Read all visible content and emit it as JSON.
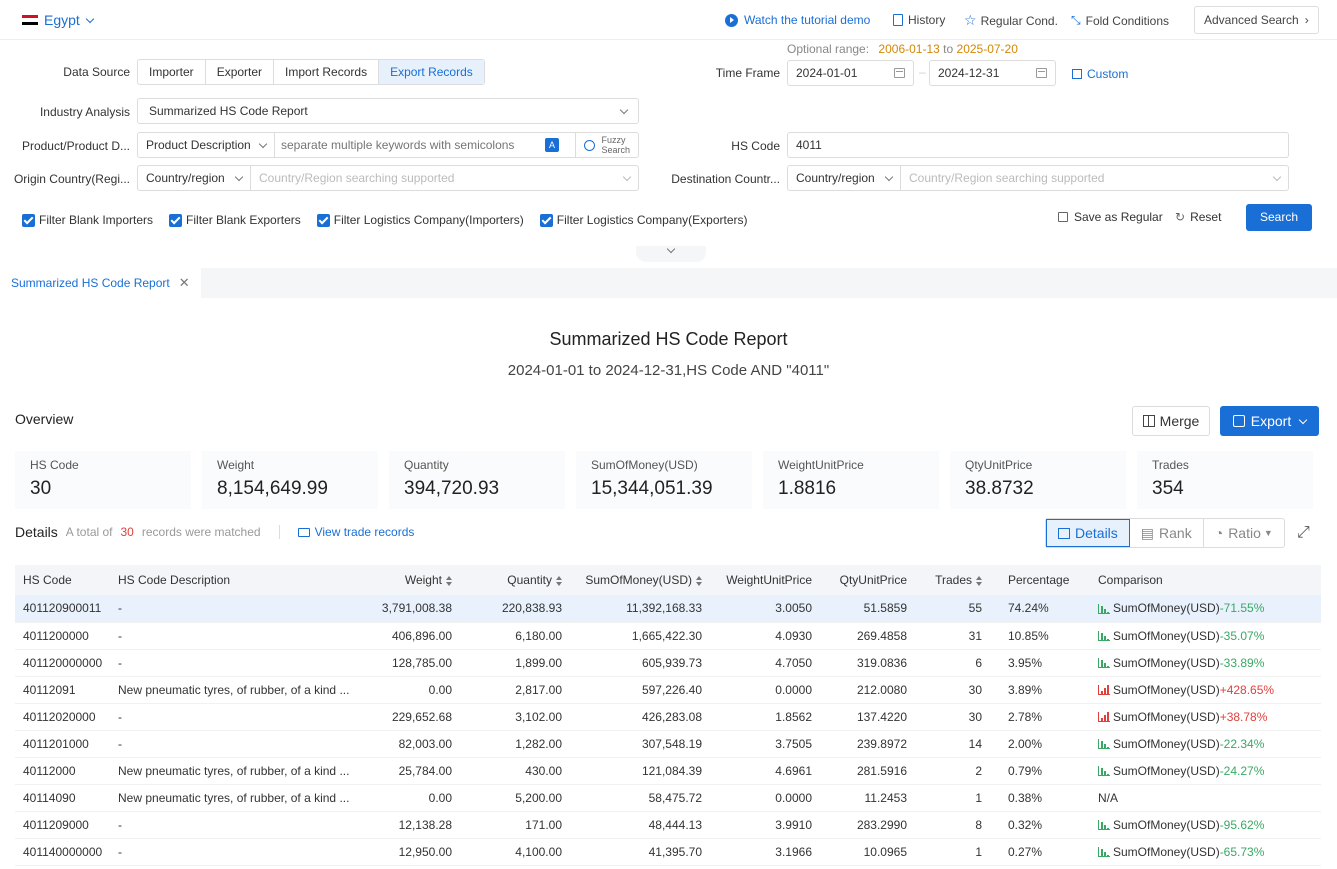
{
  "topbar": {
    "country": "Egypt",
    "tutorial": "Watch the tutorial demo",
    "history": "History",
    "regular": "Regular Cond.",
    "fold": "Fold Conditions",
    "advanced": "Advanced Search"
  },
  "form": {
    "optional_range_label": "Optional range",
    "range_start": "2006-01-13",
    "range_to": "to",
    "range_end": "2025-07-20",
    "data_source_label": "Data Source",
    "data_source_options": [
      "Importer",
      "Exporter",
      "Import Records",
      "Export Records"
    ],
    "data_source_selected": "Export Records",
    "time_frame_label": "Time Frame",
    "date_from": "2024-01-01",
    "date_to": "2024-12-31",
    "custom": "Custom",
    "industry_label": "Industry Analysis",
    "industry_value": "Summarized HS Code Report",
    "product_label": "Product/Product D...",
    "product_type": "Product Description",
    "keyword_placeholder": "separate multiple keywords with semicolons",
    "fuzzy": "Fuzzy",
    "search_word": "Search",
    "hs_label": "HS Code",
    "hs_value": "4011",
    "origin_label": "Origin Country(Regi...",
    "origin_type": "Country/region",
    "origin_placeholder": "Country/Region searching supported",
    "dest_label": "Destination Countr...",
    "dest_type": "Country/region",
    "dest_placeholder": "Country/Region searching supported",
    "checks": [
      "Filter Blank Importers",
      "Filter Blank Exporters",
      "Filter Logistics Company(Importers)",
      "Filter Logistics Company(Exporters)"
    ],
    "save_regular": "Save as Regular",
    "reset": "Reset",
    "search": "Search"
  },
  "report": {
    "tab": "Summarized HS Code Report",
    "title": "Summarized HS Code Report",
    "subtitle": "2024-01-01 to 2024-12-31,HS Code AND \"4011\"",
    "overview": "Overview",
    "merge": "Merge",
    "export": "Export",
    "cards": [
      {
        "label": "HS Code",
        "value": "30"
      },
      {
        "label": "Weight",
        "value": "8,154,649.99"
      },
      {
        "label": "Quantity",
        "value": "394,720.93"
      },
      {
        "label": "SumOfMoney(USD)",
        "value": "15,344,051.39"
      },
      {
        "label": "WeightUnitPrice",
        "value": "1.8816"
      },
      {
        "label": "QtyUnitPrice",
        "value": "38.8732"
      },
      {
        "label": "Trades",
        "value": "354"
      }
    ],
    "details": "Details",
    "total_of": "A total of",
    "count": "30",
    "matched": "records were matched",
    "view_trade": "View trade records",
    "view_details": "Details",
    "view_rank": "Rank",
    "view_ratio": "Ratio"
  },
  "table": {
    "headers": [
      "HS Code",
      "HS Code Description",
      "Weight",
      "Quantity",
      "SumOfMoney(USD)",
      "WeightUnitPrice",
      "QtyUnitPrice",
      "Trades",
      "Percentage",
      "Comparison"
    ],
    "rows": [
      [
        "401120900011",
        "-",
        "3,791,008.38",
        "220,838.93",
        "11,392,168.33",
        "3.0050",
        "51.5859",
        "55",
        "74.24%",
        "SumOfMoney(USD)",
        "-71.55%"
      ],
      [
        "4011200000",
        "-",
        "406,896.00",
        "6,180.00",
        "1,665,422.30",
        "4.0930",
        "269.4858",
        "31",
        "10.85%",
        "SumOfMoney(USD)",
        "-35.07%"
      ],
      [
        "401120000000",
        "-",
        "128,785.00",
        "1,899.00",
        "605,939.73",
        "4.7050",
        "319.0836",
        "6",
        "3.95%",
        "SumOfMoney(USD)",
        "-33.89%"
      ],
      [
        "40112091",
        "New pneumatic tyres, of rubber, of a kind ...",
        "0.00",
        "2,817.00",
        "597,226.40",
        "0.0000",
        "212.0080",
        "30",
        "3.89%",
        "SumOfMoney(USD)",
        "+428.65%"
      ],
      [
        "40112020000",
        "-",
        "229,652.68",
        "3,102.00",
        "426,283.08",
        "1.8562",
        "137.4220",
        "30",
        "2.78%",
        "SumOfMoney(USD)",
        "+38.78%"
      ],
      [
        "4011201000",
        "-",
        "82,003.00",
        "1,282.00",
        "307,548.19",
        "3.7505",
        "239.8972",
        "14",
        "2.00%",
        "SumOfMoney(USD)",
        "-22.34%"
      ],
      [
        "40112000",
        "New pneumatic tyres, of rubber, of a kind ...",
        "25,784.00",
        "430.00",
        "121,084.39",
        "4.6961",
        "281.5916",
        "2",
        "0.79%",
        "SumOfMoney(USD)",
        "-24.27%"
      ],
      [
        "40114090",
        "New pneumatic tyres, of rubber, of a kind ...",
        "0.00",
        "5,200.00",
        "58,475.72",
        "0.0000",
        "11.2453",
        "1",
        "0.38%",
        "N/A",
        ""
      ],
      [
        "4011209000",
        "-",
        "12,138.28",
        "171.00",
        "48,444.13",
        "3.9910",
        "283.2990",
        "8",
        "0.32%",
        "SumOfMoney(USD)",
        "-95.62%"
      ],
      [
        "401140000000",
        "-",
        "12,950.00",
        "4,100.00",
        "41,395.70",
        "3.1966",
        "10.0965",
        "1",
        "0.27%",
        "SumOfMoney(USD)",
        "-65.73%"
      ]
    ]
  }
}
